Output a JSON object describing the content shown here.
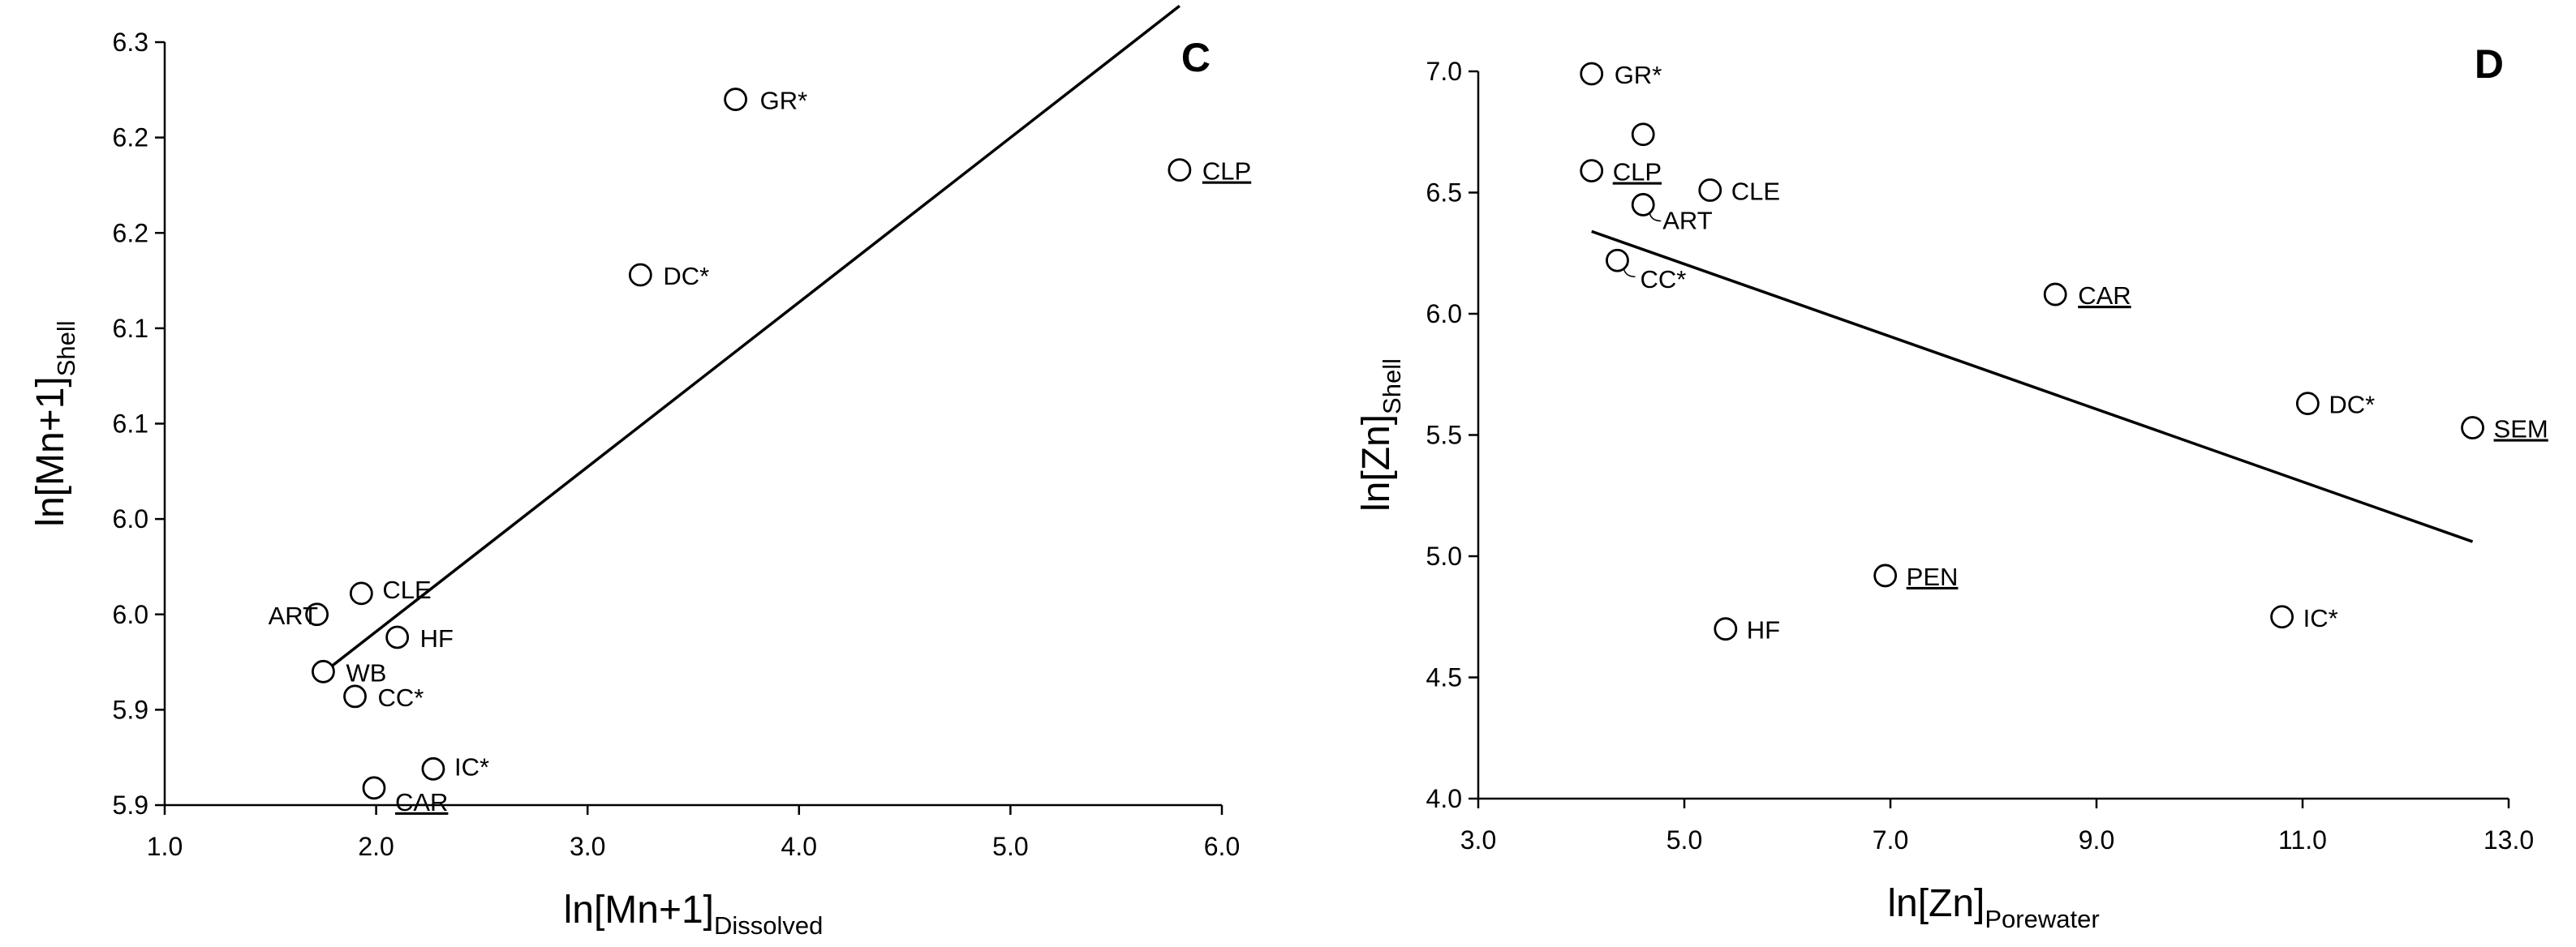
{
  "chart_data": [
    {
      "type": "scatter",
      "panel_label": "C",
      "xlabel": "ln[Mn+1]",
      "xlabel_sub": "Dissolved",
      "ylabel": "ln[Mn+1]",
      "ylabel_sub": "Shell",
      "xlim": [
        1.0,
        6.0
      ],
      "ylim": [
        5.9,
        6.3
      ],
      "x_ticks": [
        1.0,
        2.0,
        3.0,
        4.0,
        5.0,
        6.0
      ],
      "x_tick_labels": [
        "1.0",
        "2.0",
        "3.0",
        "4.0",
        "5.0",
        "6.0"
      ],
      "y_ticks": [
        5.9,
        5.95,
        6.0,
        6.05,
        6.1,
        6.15,
        6.2,
        6.25,
        6.3
      ],
      "y_tick_labels": [
        "5.9",
        "5.9",
        "6.0",
        "6.0",
        "6.1",
        "6.1",
        "6.2",
        "6.2",
        "6.3"
      ],
      "points": [
        {
          "label": "GR*",
          "x": 3.7,
          "y": 6.27,
          "underline": false
        },
        {
          "label": "CLP",
          "x": 5.8,
          "y": 6.233,
          "underline": true
        },
        {
          "label": "DC*",
          "x": 3.25,
          "y": 6.178,
          "underline": false
        },
        {
          "label": "CLE",
          "x": 1.93,
          "y": 6.011,
          "underline": false
        },
        {
          "label": "ART",
          "x": 1.72,
          "y": 6.0,
          "underline": false
        },
        {
          "label": "HF",
          "x": 2.1,
          "y": 5.988,
          "underline": false
        },
        {
          "label": "WB",
          "x": 1.75,
          "y": 5.97,
          "underline": false
        },
        {
          "label": "CC*",
          "x": 1.9,
          "y": 5.957,
          "underline": false
        },
        {
          "label": "IC*",
          "x": 2.27,
          "y": 5.919,
          "underline": false
        },
        {
          "label": "CAR",
          "x": 1.99,
          "y": 5.909,
          "underline": true
        }
      ],
      "trendline": [
        [
          1.78,
          5.972
        ],
        [
          5.8,
          6.319
        ]
      ]
    },
    {
      "type": "scatter",
      "panel_label": "D",
      "xlabel": "ln[Zn]",
      "xlabel_sub": "Porewater",
      "ylabel": "ln[Zn]",
      "ylabel_sub": "Shell",
      "xlim": [
        3.0,
        13.0
      ],
      "ylim": [
        4.0,
        7.0
      ],
      "x_ticks": [
        3.0,
        5.0,
        7.0,
        9.0,
        11.0,
        13.0
      ],
      "x_tick_labels": [
        "3.0",
        "5.0",
        "7.0",
        "9.0",
        "11.0",
        "13.0"
      ],
      "y_ticks": [
        4.0,
        4.5,
        5.0,
        5.5,
        6.0,
        6.5,
        7.0
      ],
      "y_tick_labels": [
        "4.0",
        "4.5",
        "5.0",
        "5.5",
        "6.0",
        "6.5",
        "7.0"
      ],
      "points": [
        {
          "label": "GR*",
          "x": 4.1,
          "y": 6.99,
          "underline": false
        },
        {
          "label": "",
          "x": 4.6,
          "y": 6.74,
          "underline": false
        },
        {
          "label": "CLP",
          "x": 4.1,
          "y": 6.59,
          "underline": true
        },
        {
          "label": "CLE",
          "x": 5.25,
          "y": 6.51,
          "underline": false
        },
        {
          "label": "ART",
          "x": 4.6,
          "y": 6.45,
          "underline": false
        },
        {
          "label": "CC*",
          "x": 4.35,
          "y": 6.22,
          "underline": false
        },
        {
          "label": "CAR",
          "x": 8.6,
          "y": 6.08,
          "underline": true
        },
        {
          "label": "DC*",
          "x": 11.05,
          "y": 5.63,
          "underline": false
        },
        {
          "label": "SEM",
          "x": 12.65,
          "y": 5.53,
          "underline": true
        },
        {
          "label": "PEN",
          "x": 6.95,
          "y": 4.92,
          "underline": true
        },
        {
          "label": "HF",
          "x": 5.4,
          "y": 4.7,
          "underline": false
        },
        {
          "label": "IC*",
          "x": 10.8,
          "y": 4.75,
          "underline": false
        }
      ],
      "trendline": [
        [
          4.1,
          6.34
        ],
        [
          12.65,
          5.06
        ]
      ]
    }
  ]
}
